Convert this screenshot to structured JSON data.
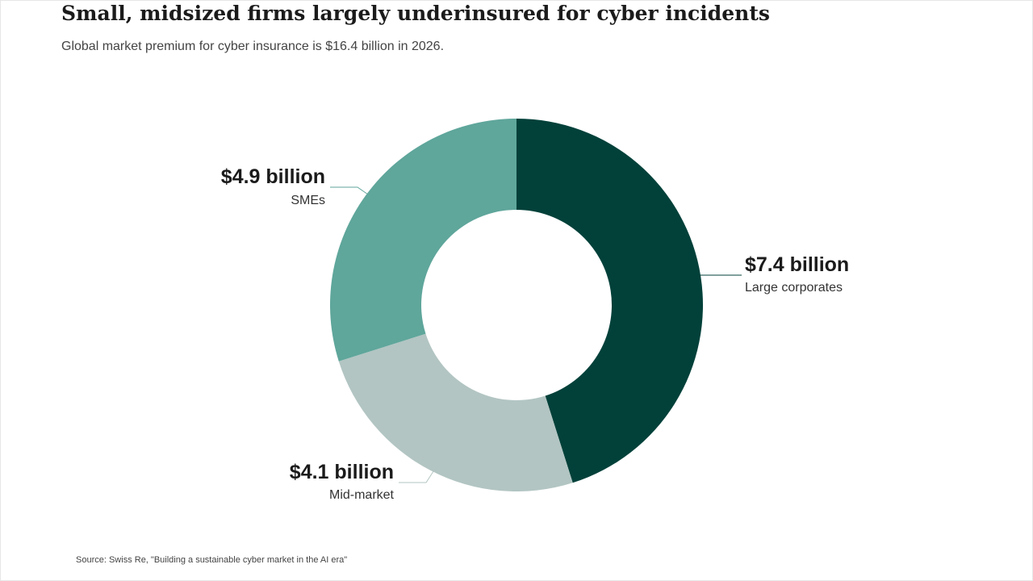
{
  "title": "Small, midsized firms largely underinsured for cyber incidents",
  "subtitle": "Global market premium for cyber insurance is $16.4 billion in 2026.",
  "source": "Source: Swiss Re, \"Building a sustainable cyber market in the AI era\"",
  "chart_data": {
    "type": "pie",
    "variant": "donut",
    "title": "Small, midsized firms largely underinsured for cyber incidents",
    "subtitle": "Global market premium for cyber insurance is $16.4 billion in 2026.",
    "units": "billion USD",
    "slices": [
      {
        "name": "Large corporates",
        "value": 7.4,
        "label": "$7.4 billion",
        "color": "#01413a"
      },
      {
        "name": "Mid-market",
        "value": 4.1,
        "label": "$4.1 billion",
        "color": "#b2c5c2"
      },
      {
        "name": "SMEs",
        "value": 4.9,
        "label": "$4.9 billion",
        "color": "#5fa69b"
      }
    ],
    "legend": "none",
    "grid": false
  }
}
